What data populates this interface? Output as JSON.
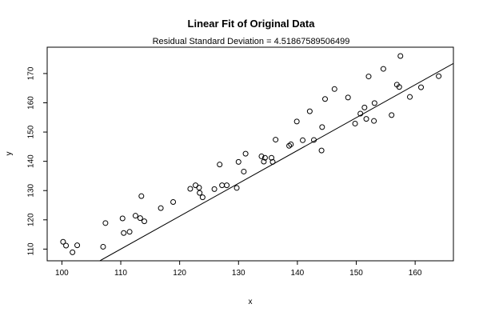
{
  "chart_data": {
    "type": "scatter",
    "title": "Linear Fit of Original Data",
    "subtitle": "Residual Standard Deviation =  4.51867589506499",
    "xlabel": "x",
    "ylabel": "y",
    "xlim": [
      97.5,
      166.5
    ],
    "ylim": [
      106,
      179
    ],
    "x_ticks": [
      100,
      110,
      120,
      130,
      140,
      150,
      160
    ],
    "y_ticks": [
      110,
      120,
      130,
      140,
      150,
      160,
      170
    ],
    "fit_line": {
      "intercept": -13.5,
      "slope": 1.1228
    },
    "points": [
      [
        100.2,
        112.5
      ],
      [
        100.7,
        111.2
      ],
      [
        101.8,
        108.9
      ],
      [
        102.6,
        111.3
      ],
      [
        107.0,
        110.8
      ],
      [
        107.4,
        118.9
      ],
      [
        110.3,
        120.5
      ],
      [
        110.5,
        115.5
      ],
      [
        111.5,
        115.9
      ],
      [
        112.5,
        121.4
      ],
      [
        113.3,
        120.6
      ],
      [
        113.5,
        128.1
      ],
      [
        114.0,
        119.5
      ],
      [
        116.8,
        124.0
      ],
      [
        118.9,
        126.1
      ],
      [
        121.8,
        130.6
      ],
      [
        122.7,
        131.8
      ],
      [
        123.3,
        131.0
      ],
      [
        123.4,
        129.2
      ],
      [
        123.9,
        127.7
      ],
      [
        125.9,
        130.5
      ],
      [
        126.8,
        138.9
      ],
      [
        127.2,
        131.8
      ],
      [
        128.0,
        131.8
      ],
      [
        129.7,
        130.9
      ],
      [
        130.0,
        139.8
      ],
      [
        130.9,
        136.5
      ],
      [
        131.2,
        142.6
      ],
      [
        133.9,
        141.7
      ],
      [
        134.3,
        139.9
      ],
      [
        134.5,
        141.2
      ],
      [
        135.6,
        141.2
      ],
      [
        135.8,
        139.8
      ],
      [
        136.3,
        147.4
      ],
      [
        138.6,
        145.3
      ],
      [
        138.9,
        145.8
      ],
      [
        139.9,
        153.6
      ],
      [
        140.9,
        147.2
      ],
      [
        142.1,
        157.1
      ],
      [
        142.8,
        147.3
      ],
      [
        144.1,
        143.7
      ],
      [
        144.2,
        151.7
      ],
      [
        144.7,
        161.3
      ],
      [
        146.3,
        164.7
      ],
      [
        148.6,
        161.8
      ],
      [
        149.8,
        152.9
      ],
      [
        150.7,
        156.3
      ],
      [
        151.4,
        158.4
      ],
      [
        151.7,
        154.5
      ],
      [
        152.1,
        169.0
      ],
      [
        153.0,
        153.8
      ],
      [
        153.1,
        159.9
      ],
      [
        154.6,
        171.6
      ],
      [
        156.0,
        155.8
      ],
      [
        156.9,
        166.2
      ],
      [
        157.3,
        165.4
      ],
      [
        157.5,
        176.0
      ],
      [
        159.1,
        162.0
      ],
      [
        161.0,
        165.3
      ],
      [
        164.0,
        169.1
      ]
    ]
  }
}
